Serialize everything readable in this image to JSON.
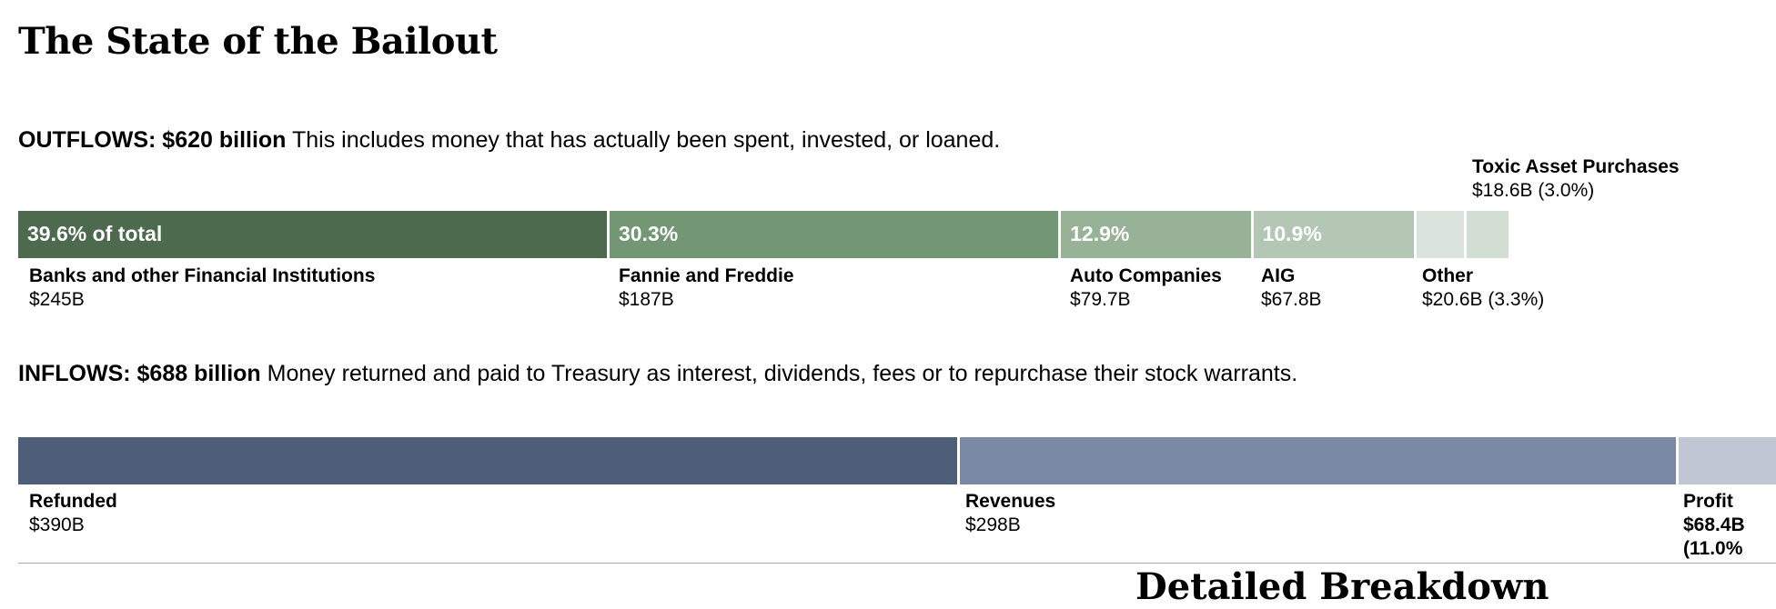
{
  "title": "The State of the Bailout",
  "outflows": {
    "heading": "OUTFLOWS: $620 billion",
    "description": "This includes money that has actually been spent, invested, or loaned."
  },
  "inflows": {
    "heading": "INFLOWS: $688 billion",
    "description": "Money returned and paid to Treasury as interest, dividends, fees or to repurchase their stock warrants."
  },
  "chart_data": [
    {
      "type": "bar",
      "orientation": "horizontal-stacked",
      "unit": "billions USD",
      "total_label": "$620 billion",
      "segments": [
        {
          "label": "Banks and other Financial Institutions",
          "value": 245,
          "value_label": "$245B",
          "pct_label": "39.6% of total",
          "color": "#4d6a4f"
        },
        {
          "label": "Fannie and Freddie",
          "value": 187,
          "value_label": "$187B",
          "pct_label": "30.3%",
          "color": "#739774"
        },
        {
          "label": "Auto Companies",
          "value": 79.7,
          "value_label": "$79.7B",
          "pct_label": "12.9%",
          "color": "#97b297"
        },
        {
          "label": "AIG",
          "value": 67.8,
          "value_label": "$67.8B",
          "pct_label": "10.9%",
          "color": "#b4c7b5"
        },
        {
          "label": "Other",
          "value": 20.6,
          "value_label": "$20.6B (3.3%)",
          "pct_label": "",
          "color": "#dbe4dc"
        },
        {
          "label": "Toxic Asset Purchases",
          "value": 18.6,
          "value_label": "$18.6B (3.0%)",
          "pct_label": "",
          "color": "#d2ddd3"
        }
      ]
    },
    {
      "type": "bar",
      "orientation": "horizontal-stacked",
      "unit": "billions USD",
      "total_label": "$688 billion",
      "segments": [
        {
          "label": "Refunded",
          "value": 390,
          "value_label": "$390B",
          "pct_label": "",
          "color": "#4f5e78"
        },
        {
          "label": "Revenues",
          "value": 298,
          "value_label": "$298B",
          "pct_label": "",
          "color": "#7b8aa4"
        },
        {
          "label": "Profit",
          "value": 68.4,
          "value_label": "$68.4B",
          "pct_label": "(11.0%",
          "color": "#c0c6d3"
        }
      ]
    }
  ],
  "next_section_heading": "Detailed Breakdown"
}
